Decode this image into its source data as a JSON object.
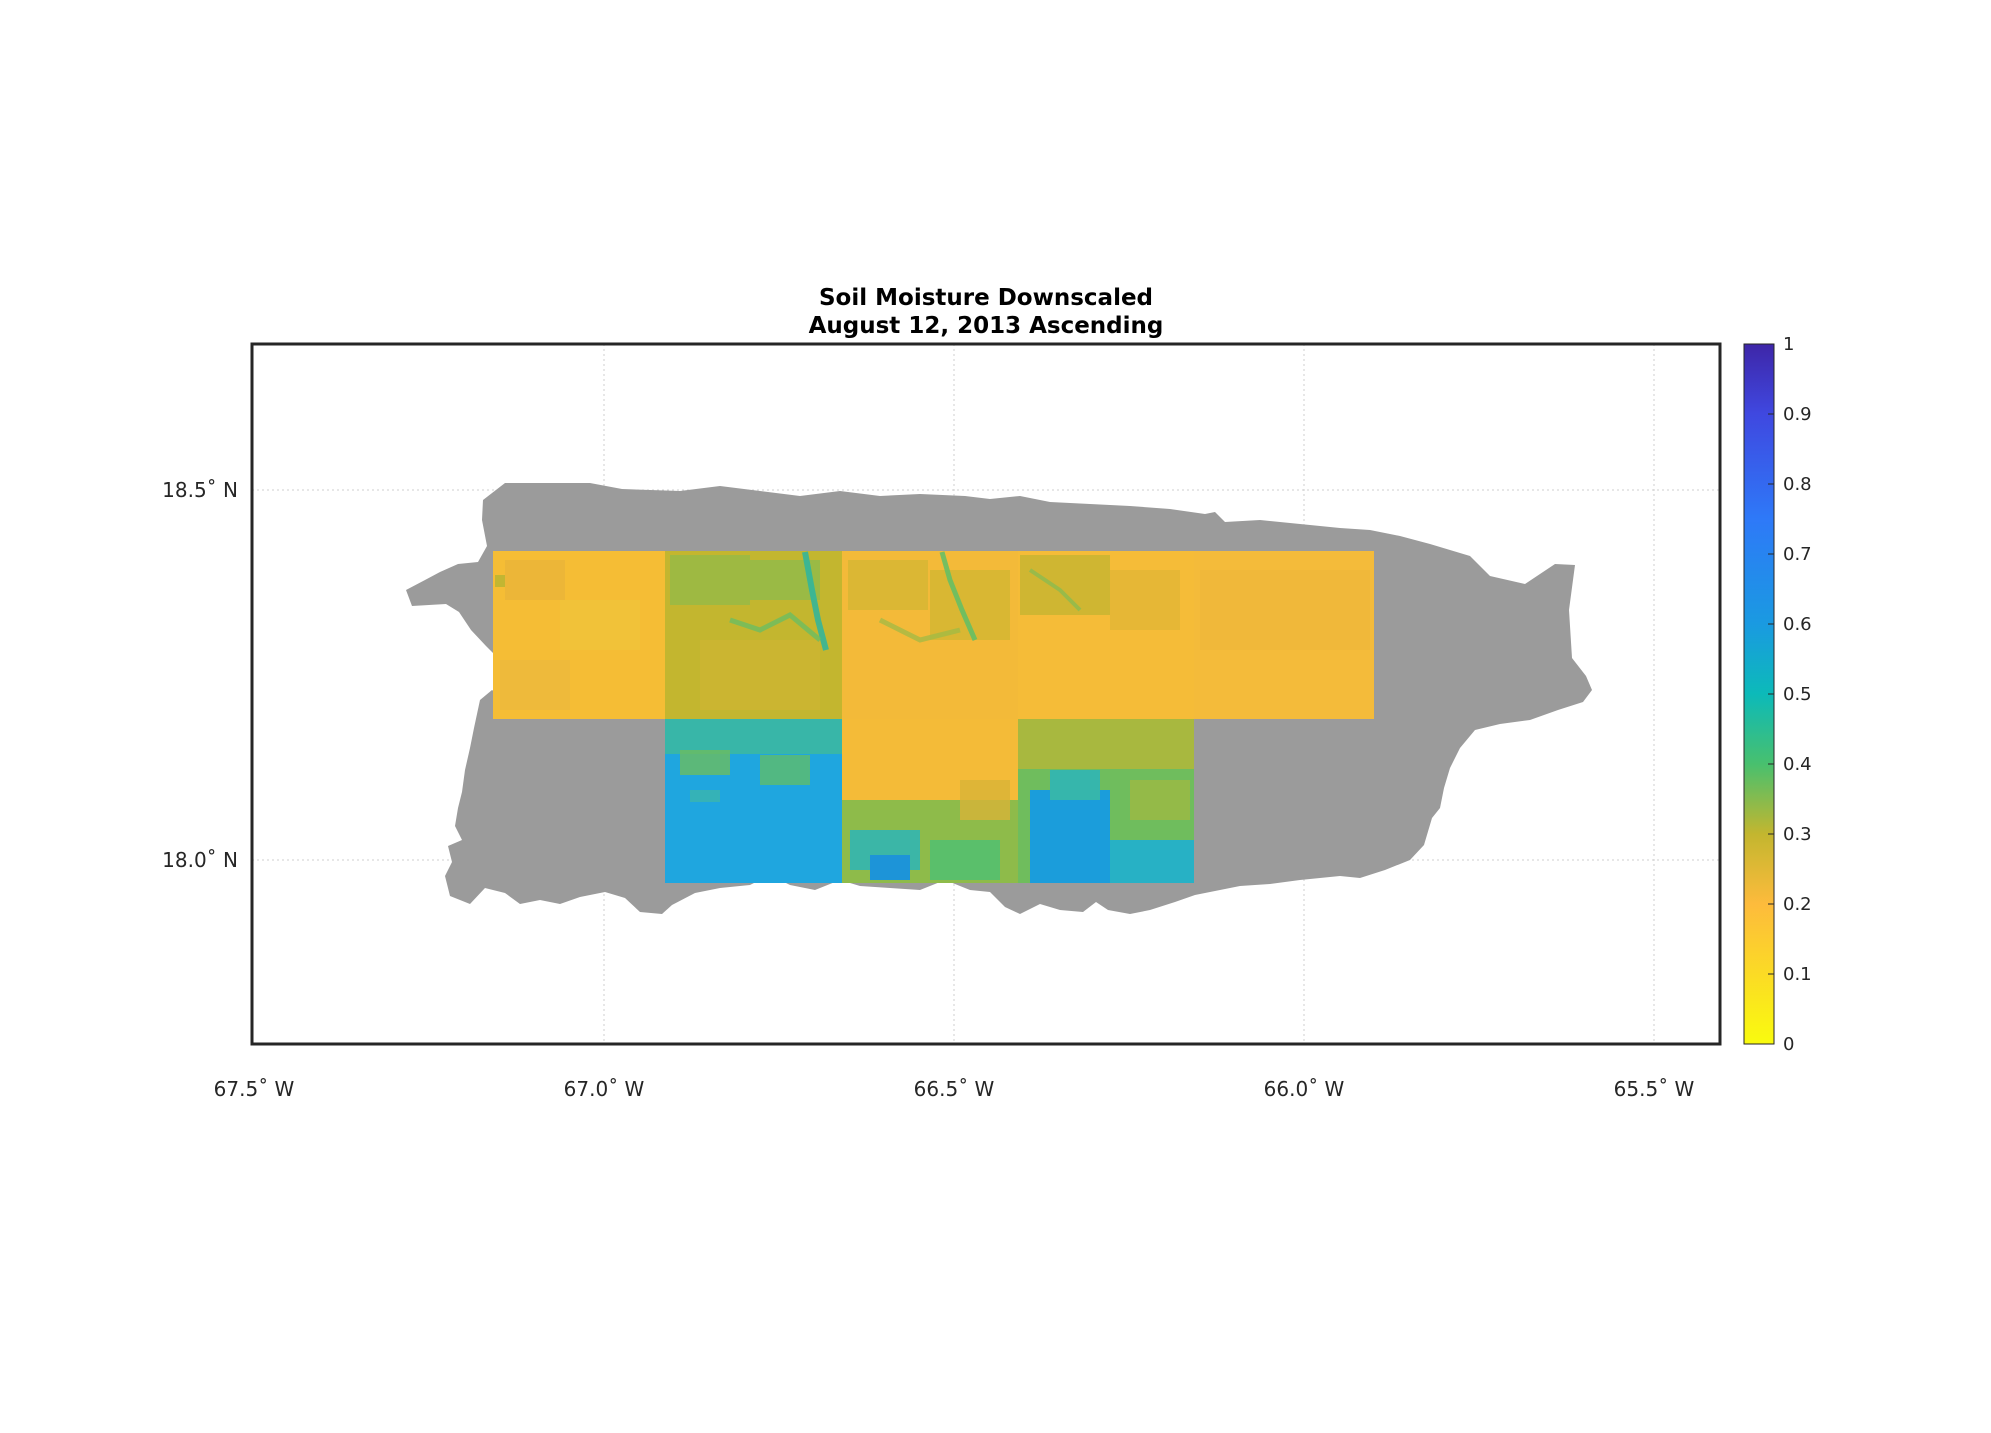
{
  "title_line1": "Soil Moisture Downscaled",
  "title_line2": "August 12, 2013 Ascending",
  "map": {
    "lon_range": [
      -67.5,
      -65.4
    ],
    "lat_range": [
      17.74,
      18.7
    ],
    "x_ticks": [
      {
        "value": -67.5,
        "label": "67.5˚ W"
      },
      {
        "value": -67.0,
        "label": "67.0˚ W"
      },
      {
        "value": -66.5,
        "label": "66.5˚ W"
      },
      {
        "value": -66.0,
        "label": "66.0˚ W"
      },
      {
        "value": -65.5,
        "label": "65.5˚ W"
      }
    ],
    "y_ticks": [
      {
        "value": 18.5,
        "label": "18.5˚ N"
      },
      {
        "value": 18.0,
        "label": "18.0˚ N"
      }
    ],
    "grid": true,
    "land_color": "#9b9b9b",
    "frame_color": "#262626",
    "tiles": [
      {
        "lon": [
          -67.15,
          -66.91
        ],
        "lat": [
          18.2,
          18.42
        ],
        "value": 0.17
      },
      {
        "lon": [
          -66.91,
          -66.66
        ],
        "lat": [
          18.2,
          18.42
        ],
        "value": 0.27
      },
      {
        "lon": [
          -66.66,
          -66.41
        ],
        "lat": [
          18.2,
          18.42
        ],
        "value": 0.21
      },
      {
        "lon": [
          -66.41,
          -66.16
        ],
        "lat": [
          18.2,
          18.42
        ],
        "value": 0.19
      },
      {
        "lon": [
          -66.16,
          -65.9
        ],
        "lat": [
          18.2,
          18.42
        ],
        "value": 0.18
      },
      {
        "lon": [
          -66.91,
          -66.66
        ],
        "lat": [
          17.97,
          18.2
        ],
        "value": 0.61
      },
      {
        "lon": [
          -66.66,
          -66.41
        ],
        "lat": [
          17.97,
          18.2
        ],
        "value": 0.24
      },
      {
        "lon": [
          -66.41,
          -66.16
        ],
        "lat": [
          17.97,
          18.2
        ],
        "value": 0.4
      }
    ]
  },
  "colorbar": {
    "min": 0,
    "max": 1,
    "ticks": [
      "0",
      "0.1",
      "0.2",
      "0.3",
      "0.4",
      "0.5",
      "0.6",
      "0.7",
      "0.8",
      "0.9",
      "1"
    ],
    "colors": [
      "#f9fb0e",
      "#fdbb3c",
      "#c3b62f",
      "#48c06e",
      "#0cbab9",
      "#1a9ae1",
      "#2e79f8",
      "#3f48e0",
      "#3e26a8"
    ]
  }
}
